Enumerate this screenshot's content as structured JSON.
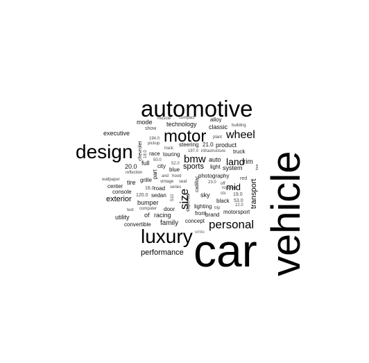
{
  "words": {
    "vehicle": "vehicle",
    "car": "car",
    "automotive": "automotive",
    "design": "design",
    "luxury": "luxury",
    "motor": "motor",
    "personal": "personal",
    "wheel": "wheel",
    "bmw": "bmw",
    "land": "land",
    "size": "size",
    "mid": "mid",
    "transport": "transport",
    "performance": "performance",
    "exterior": "exterior",
    "sports": "sports",
    "technology": "technology",
    "classic": "classic",
    "product": "product",
    "steering": "steering",
    "alloy": "alloy",
    "mode": "mode",
    "executive": "executive",
    "show": "show",
    "muscle": "muscle",
    "compact": "compact",
    "building": "building",
    "plant": "plant",
    "n194": "194.0",
    "pickup": "pickup",
    "chevrolet": "chevrolet",
    "track": "track",
    "n197": "197.0",
    "infrastructure": "infrastructure",
    "truck": "truck",
    "race": "race",
    "touring": "touring",
    "n50": "50.0",
    "n210": "21.0",
    "full": "full",
    "city": "city",
    "n520": "52.0",
    "blue": "blue",
    "auto": "auto",
    "rim": "rim",
    "system": "system",
    "light": "light",
    "n200": "20.0",
    "grille": "grille",
    "reflection": "reflection",
    "wallpaper": "wallpaper",
    "part": "part",
    "and": "and",
    "hood": "hood",
    "seat": "seat",
    "vintage": "vintage",
    "tire": "tire",
    "center": "center",
    "n160": "16.0",
    "road": "road",
    "series": "series",
    "cadillac": "cadillac",
    "photography": "photography",
    "n230": "23.0",
    "off": "off",
    "roading": "roading",
    "red": "red",
    "console": "console",
    "n1200": "120.0",
    "sedan": "sedan",
    "supercar": "supercar",
    "sky": "sky",
    "black": "black",
    "cts": "cts",
    "n190": "19.0",
    "n530": "53.0",
    "bumper": "bumper",
    "door": "door",
    "lighting": "lighting",
    "trip": "trip",
    "n220": "22.0",
    "text": "text",
    "computer": "computer",
    "front": "front",
    "brand": "brand",
    "motorsport": "motorsport",
    "utility": "utility",
    "of": "of",
    "racing": "racing",
    "concept": "concept",
    "convertible": "convertible",
    "family": "family",
    "white": "white",
    "n510": "510",
    "n1850": "18.0",
    "tree": "tree"
  }
}
